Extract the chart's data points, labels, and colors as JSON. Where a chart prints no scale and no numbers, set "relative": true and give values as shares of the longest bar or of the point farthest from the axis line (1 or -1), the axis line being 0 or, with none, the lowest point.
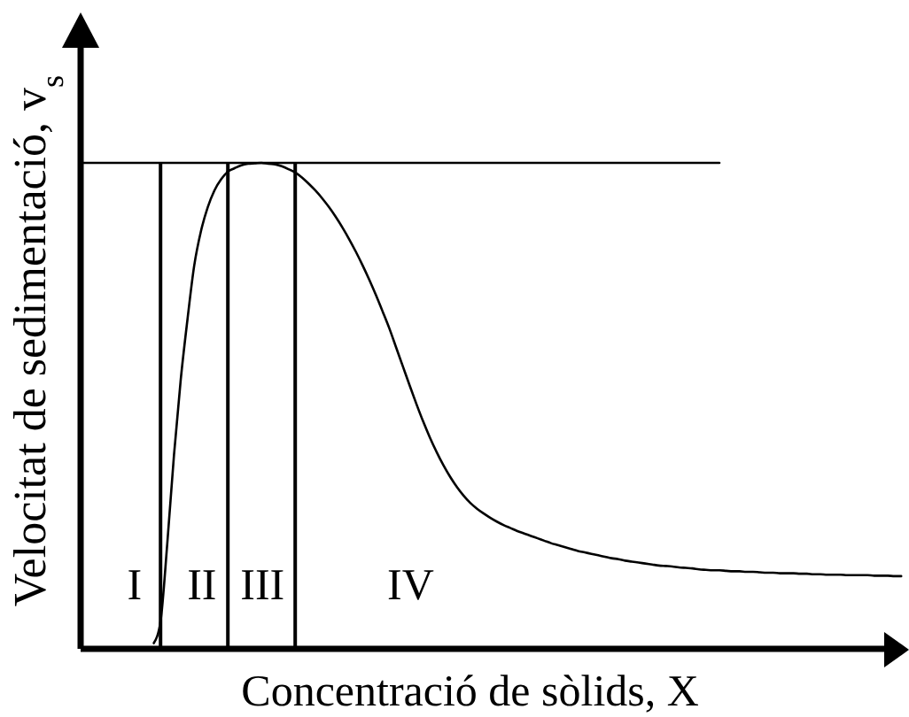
{
  "chart_data": {
    "type": "line",
    "relative": true,
    "xlabel": "Concentració de sòlids, X",
    "ylabel": "Velocitat de sedimentació, v$_{s}$",
    "categories": [
      null,
      null,
      null,
      null,
      null,
      null,
      null,
      null,
      "I",
      null,
      null,
      null,
      null,
      null,
      null,
      null,
      null,
      null,
      "II",
      null,
      null,
      null,
      null,
      null,
      null,
      null,
      null,
      "III",
      null,
      null,
      null,
      null,
      null,
      null,
      null,
      null,
      null,
      null,
      null,
      null,
      null,
      null,
      null,
      null,
      null,
      null,
      null,
      null,
      null,
      "IV",
      null,
      null,
      null,
      null,
      null,
      null,
      null,
      null,
      null,
      null,
      null,
      null,
      null,
      null,
      null,
      null,
      null,
      null,
      null,
      null,
      null,
      null,
      null,
      null,
      null,
      null,
      null,
      null,
      null,
      null,
      null,
      null,
      null,
      null,
      null,
      null,
      null,
      null,
      null,
      null,
      null,
      null,
      null,
      null,
      null,
      null,
      null,
      null,
      null,
      null,
      null,
      null,
      null,
      null,
      null,
      null,
      null,
      null,
      null,
      null,
      null,
      null,
      null,
      null,
      null,
      null,
      null,
      null,
      null,
      null,
      null,
      null,
      null
    ],
    "series": [
      {
        "color": "#000000",
        "values": [
          null,
          null,
          null,
          null,
          null,
          null,
          null,
          null,
          null,
          null,
          null,
          0.01,
          0.055,
          0.215,
          0.398,
          0.553,
          0.677,
          0.788,
          0.859,
          0.908,
          0.943,
          0.966,
          0.982,
          0.989,
          0.995,
          0.998,
          0.999,
          1.0,
          0.998,
          0.997,
          0.993,
          0.987,
          0.98,
          0.97,
          0.957,
          0.943,
          0.927,
          0.909,
          0.889,
          0.867,
          0.843,
          0.817,
          0.789,
          0.759,
          0.727,
          0.693,
          0.658,
          0.619,
          0.58,
          0.541,
          0.503,
          0.467,
          0.434,
          0.404,
          0.377,
          0.353,
          0.332,
          0.314,
          0.299,
          0.287,
          0.277,
          0.268,
          0.26,
          0.253,
          0.247,
          0.241,
          0.236,
          0.231,
          0.226,
          0.221,
          0.216,
          0.212,
          0.208,
          0.204,
          0.2,
          0.197,
          0.194,
          0.191,
          0.188,
          0.185,
          0.183,
          0.18,
          0.178,
          0.176,
          0.174,
          0.172,
          0.17,
          0.169,
          0.168,
          0.166,
          0.165,
          0.164,
          0.162,
          0.161,
          0.16,
          0.16,
          0.159,
          0.158,
          0.158,
          0.157,
          0.157,
          0.156,
          0.155,
          0.155,
          0.154,
          0.154,
          0.154,
          0.153,
          0.153,
          0.152,
          0.152,
          0.151,
          0.151,
          0.151,
          0.15,
          0.15,
          0.15,
          0.15,
          0.149,
          0.149,
          0.149,
          0.148,
          0.148
        ]
      },
      {
        "color": "#000000",
        "values": [
          1,
          1,
          1,
          1,
          1,
          1,
          1,
          1,
          1,
          1,
          1,
          1,
          1,
          1,
          1,
          1,
          1,
          1,
          1,
          1,
          1,
          1,
          1,
          1,
          1,
          1,
          1,
          1,
          1,
          1,
          1,
          1,
          1,
          1,
          1,
          1,
          1,
          1,
          1,
          1,
          1,
          1,
          1,
          1,
          1,
          1,
          1,
          1,
          1,
          1,
          1,
          1,
          1,
          1,
          1,
          1,
          1,
          1,
          1,
          1,
          1,
          1,
          1,
          1,
          1,
          1,
          1,
          1,
          1,
          1,
          1,
          1,
          1,
          1,
          1,
          1,
          1,
          1,
          1,
          1,
          1,
          1,
          1,
          1,
          1,
          1,
          1,
          1,
          1,
          1,
          1,
          1,
          1,
          1,
          1,
          1,
          null,
          null,
          null,
          null,
          null,
          null,
          null,
          null,
          null,
          null,
          null,
          null,
          null,
          null,
          null,
          null,
          null,
          null,
          null,
          null,
          null,
          null,
          null,
          null,
          null,
          null,
          null
        ]
      },
      {
        "type": "bar",
        "color": "#000000",
        "values": [
          null,
          null,
          null,
          null,
          null,
          null,
          null,
          null,
          null,
          null,
          null,
          null,
          1,
          null,
          null,
          null,
          null,
          null,
          null,
          null,
          null,
          null,
          1,
          null,
          null,
          null,
          null,
          null,
          null,
          null,
          null,
          null,
          1,
          null,
          null,
          null,
          null,
          null,
          null,
          null,
          null,
          null,
          null,
          null,
          null,
          null,
          null,
          null,
          null,
          null,
          null,
          null,
          null,
          null,
          null,
          null,
          null,
          null,
          null,
          null,
          null,
          null,
          null,
          null,
          null,
          null,
          null,
          null,
          null,
          null,
          null,
          null,
          null,
          null,
          null,
          null,
          null,
          null,
          null,
          null,
          null,
          null,
          null,
          null,
          null,
          null,
          null,
          null,
          null,
          null,
          null,
          null,
          null,
          null,
          null,
          null,
          null,
          null,
          null,
          null,
          null,
          null,
          null,
          null,
          null,
          null,
          null,
          null,
          null,
          null,
          null,
          null,
          null,
          null,
          null,
          null,
          null,
          null,
          null,
          null,
          null,
          null,
          null
        ]
      }
    ]
  }
}
